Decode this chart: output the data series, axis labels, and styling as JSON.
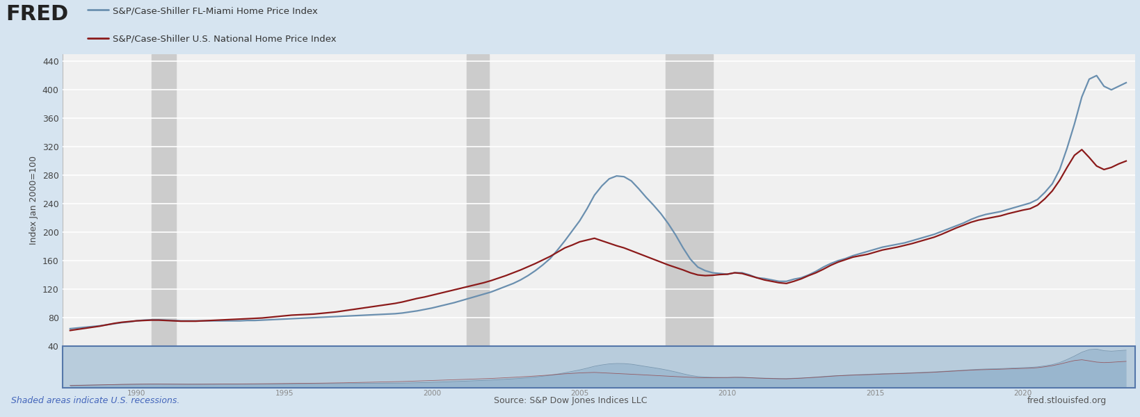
{
  "title_line1": "S&P/Case-Shiller FL-Miami Home Price Index",
  "title_line2": "S&P/Case-Shiller U.S. National Home Price Index",
  "ylabel": "Index Jan 2000=100",
  "source_text": "Source: S&P Dow Jones Indices LLC",
  "fred_url": "fred.stlouisfed.org",
  "recession_note": "Shaded areas indicate U.S. recessions.",
  "background_color": "#d6e4f0",
  "plot_bg_color": "#f0f0f0",
  "miami_color": "#6a8faf",
  "national_color": "#8b1a1a",
  "recession_color": "#cccccc",
  "recession_shades": [
    {
      "start": 1990.5,
      "end": 1991.33
    },
    {
      "start": 2001.17,
      "end": 2001.92
    },
    {
      "start": 2007.92,
      "end": 2009.5
    }
  ],
  "ylim": [
    40,
    450
  ],
  "yticks": [
    40,
    80,
    120,
    160,
    200,
    240,
    280,
    320,
    360,
    400,
    440
  ],
  "xlim_main": [
    1987.5,
    2023.8
  ],
  "xticks_main": [
    1988,
    1990,
    1992,
    1994,
    1996,
    1998,
    2000,
    2002,
    2004,
    2006,
    2008,
    2010,
    2012,
    2014,
    2016,
    2018,
    2020,
    2022
  ],
  "miami_data": [
    [
      1987.75,
      64.5
    ],
    [
      1988.0,
      65.5
    ],
    [
      1988.25,
      66.5
    ],
    [
      1988.5,
      67.5
    ],
    [
      1988.75,
      68.5
    ],
    [
      1989.0,
      70.0
    ],
    [
      1989.25,
      71.5
    ],
    [
      1989.5,
      73.0
    ],
    [
      1989.75,
      74.0
    ],
    [
      1990.0,
      75.5
    ],
    [
      1990.25,
      76.5
    ],
    [
      1990.5,
      77.0
    ],
    [
      1990.75,
      77.0
    ],
    [
      1991.0,
      76.5
    ],
    [
      1991.25,
      76.0
    ],
    [
      1991.5,
      75.5
    ],
    [
      1991.75,
      75.5
    ],
    [
      1992.0,
      75.5
    ],
    [
      1992.25,
      75.5
    ],
    [
      1992.5,
      75.5
    ],
    [
      1992.75,
      75.5
    ],
    [
      1993.0,
      75.5
    ],
    [
      1993.25,
      75.5
    ],
    [
      1993.5,
      75.5
    ],
    [
      1993.75,
      76.0
    ],
    [
      1994.0,
      76.0
    ],
    [
      1994.25,
      76.5
    ],
    [
      1994.5,
      77.0
    ],
    [
      1994.75,
      77.5
    ],
    [
      1995.0,
      78.0
    ],
    [
      1995.25,
      78.5
    ],
    [
      1995.5,
      79.0
    ],
    [
      1995.75,
      79.5
    ],
    [
      1996.0,
      80.0
    ],
    [
      1996.25,
      80.5
    ],
    [
      1996.5,
      81.0
    ],
    [
      1996.75,
      81.5
    ],
    [
      1997.0,
      82.0
    ],
    [
      1997.25,
      82.5
    ],
    [
      1997.5,
      83.0
    ],
    [
      1997.75,
      83.5
    ],
    [
      1998.0,
      84.0
    ],
    [
      1998.25,
      84.5
    ],
    [
      1998.5,
      85.0
    ],
    [
      1998.75,
      85.5
    ],
    [
      1999.0,
      86.5
    ],
    [
      1999.25,
      88.0
    ],
    [
      1999.5,
      89.5
    ],
    [
      1999.75,
      91.5
    ],
    [
      2000.0,
      93.5
    ],
    [
      2000.25,
      96.0
    ],
    [
      2000.5,
      98.5
    ],
    [
      2000.75,
      101.0
    ],
    [
      2001.0,
      104.0
    ],
    [
      2001.25,
      107.0
    ],
    [
      2001.5,
      110.0
    ],
    [
      2001.75,
      113.0
    ],
    [
      2002.0,
      116.0
    ],
    [
      2002.25,
      120.0
    ],
    [
      2002.5,
      124.0
    ],
    [
      2002.75,
      128.0
    ],
    [
      2003.0,
      133.0
    ],
    [
      2003.25,
      139.0
    ],
    [
      2003.5,
      146.0
    ],
    [
      2003.75,
      154.0
    ],
    [
      2004.0,
      163.0
    ],
    [
      2004.25,
      175.0
    ],
    [
      2004.5,
      188.0
    ],
    [
      2004.75,
      202.0
    ],
    [
      2005.0,
      216.0
    ],
    [
      2005.25,
      233.0
    ],
    [
      2005.5,
      252.0
    ],
    [
      2005.75,
      265.0
    ],
    [
      2006.0,
      275.0
    ],
    [
      2006.25,
      279.0
    ],
    [
      2006.5,
      278.0
    ],
    [
      2006.75,
      272.0
    ],
    [
      2007.0,
      261.0
    ],
    [
      2007.25,
      249.0
    ],
    [
      2007.5,
      238.0
    ],
    [
      2007.75,
      226.0
    ],
    [
      2008.0,
      212.0
    ],
    [
      2008.25,
      196.0
    ],
    [
      2008.5,
      178.0
    ],
    [
      2008.75,
      162.0
    ],
    [
      2009.0,
      151.0
    ],
    [
      2009.25,
      146.0
    ],
    [
      2009.5,
      143.0
    ],
    [
      2009.75,
      142.0
    ],
    [
      2010.0,
      141.0
    ],
    [
      2010.25,
      143.0
    ],
    [
      2010.5,
      143.0
    ],
    [
      2010.75,
      140.0
    ],
    [
      2011.0,
      136.0
    ],
    [
      2011.25,
      135.0
    ],
    [
      2011.5,
      133.0
    ],
    [
      2011.75,
      131.0
    ],
    [
      2012.0,
      131.0
    ],
    [
      2012.25,
      134.0
    ],
    [
      2012.5,
      136.0
    ],
    [
      2012.75,
      140.0
    ],
    [
      2013.0,
      145.0
    ],
    [
      2013.25,
      151.0
    ],
    [
      2013.5,
      156.0
    ],
    [
      2013.75,
      160.0
    ],
    [
      2014.0,
      163.0
    ],
    [
      2014.25,
      167.0
    ],
    [
      2014.5,
      170.0
    ],
    [
      2014.75,
      173.0
    ],
    [
      2015.0,
      176.0
    ],
    [
      2015.25,
      179.0
    ],
    [
      2015.5,
      181.0
    ],
    [
      2015.75,
      183.0
    ],
    [
      2016.0,
      185.0
    ],
    [
      2016.25,
      188.0
    ],
    [
      2016.5,
      191.0
    ],
    [
      2016.75,
      194.0
    ],
    [
      2017.0,
      197.0
    ],
    [
      2017.25,
      201.0
    ],
    [
      2017.5,
      205.0
    ],
    [
      2017.75,
      209.0
    ],
    [
      2018.0,
      213.0
    ],
    [
      2018.25,
      218.0
    ],
    [
      2018.5,
      222.0
    ],
    [
      2018.75,
      225.0
    ],
    [
      2019.0,
      227.0
    ],
    [
      2019.25,
      229.0
    ],
    [
      2019.5,
      232.0
    ],
    [
      2019.75,
      235.0
    ],
    [
      2020.0,
      238.0
    ],
    [
      2020.25,
      241.0
    ],
    [
      2020.5,
      246.0
    ],
    [
      2020.75,
      256.0
    ],
    [
      2021.0,
      268.0
    ],
    [
      2021.25,
      288.0
    ],
    [
      2021.5,
      318.0
    ],
    [
      2021.75,
      352.0
    ],
    [
      2022.0,
      390.0
    ],
    [
      2022.25,
      415.0
    ],
    [
      2022.5,
      420.0
    ],
    [
      2022.75,
      405.0
    ],
    [
      2023.0,
      400.0
    ],
    [
      2023.25,
      405.0
    ],
    [
      2023.5,
      410.0
    ]
  ],
  "national_data": [
    [
      1987.75,
      62.0
    ],
    [
      1988.0,
      63.5
    ],
    [
      1988.25,
      65.0
    ],
    [
      1988.5,
      66.5
    ],
    [
      1988.75,
      68.0
    ],
    [
      1989.0,
      70.0
    ],
    [
      1989.25,
      72.0
    ],
    [
      1989.5,
      73.5
    ],
    [
      1989.75,
      74.5
    ],
    [
      1990.0,
      75.5
    ],
    [
      1990.25,
      76.0
    ],
    [
      1990.5,
      76.5
    ],
    [
      1990.75,
      76.5
    ],
    [
      1991.0,
      76.0
    ],
    [
      1991.25,
      75.5
    ],
    [
      1991.5,
      75.0
    ],
    [
      1991.75,
      75.0
    ],
    [
      1992.0,
      75.0
    ],
    [
      1992.25,
      75.5
    ],
    [
      1992.5,
      76.0
    ],
    [
      1992.75,
      76.5
    ],
    [
      1993.0,
      77.0
    ],
    [
      1993.25,
      77.5
    ],
    [
      1993.5,
      78.0
    ],
    [
      1993.75,
      78.5
    ],
    [
      1994.0,
      79.0
    ],
    [
      1994.25,
      79.5
    ],
    [
      1994.5,
      80.5
    ],
    [
      1994.75,
      81.5
    ],
    [
      1995.0,
      82.5
    ],
    [
      1995.25,
      83.5
    ],
    [
      1995.5,
      84.0
    ],
    [
      1995.75,
      84.5
    ],
    [
      1996.0,
      85.0
    ],
    [
      1996.25,
      86.0
    ],
    [
      1996.5,
      87.0
    ],
    [
      1996.75,
      88.0
    ],
    [
      1997.0,
      89.5
    ],
    [
      1997.25,
      91.0
    ],
    [
      1997.5,
      92.5
    ],
    [
      1997.75,
      94.0
    ],
    [
      1998.0,
      95.5
    ],
    [
      1998.25,
      97.0
    ],
    [
      1998.5,
      98.5
    ],
    [
      1998.75,
      100.0
    ],
    [
      1999.0,
      102.0
    ],
    [
      1999.25,
      104.5
    ],
    [
      1999.5,
      107.0
    ],
    [
      1999.75,
      109.0
    ],
    [
      2000.0,
      111.5
    ],
    [
      2000.25,
      114.0
    ],
    [
      2000.5,
      116.5
    ],
    [
      2000.75,
      119.0
    ],
    [
      2001.0,
      121.5
    ],
    [
      2001.25,
      124.0
    ],
    [
      2001.5,
      126.5
    ],
    [
      2001.75,
      129.0
    ],
    [
      2002.0,
      132.0
    ],
    [
      2002.25,
      135.5
    ],
    [
      2002.5,
      139.0
    ],
    [
      2002.75,
      143.0
    ],
    [
      2003.0,
      147.0
    ],
    [
      2003.25,
      151.5
    ],
    [
      2003.5,
      156.0
    ],
    [
      2003.75,
      161.0
    ],
    [
      2004.0,
      166.0
    ],
    [
      2004.25,
      172.0
    ],
    [
      2004.5,
      178.0
    ],
    [
      2004.75,
      182.0
    ],
    [
      2005.0,
      186.5
    ],
    [
      2005.25,
      189.0
    ],
    [
      2005.5,
      191.5
    ],
    [
      2005.75,
      188.0
    ],
    [
      2006.0,
      184.5
    ],
    [
      2006.25,
      181.0
    ],
    [
      2006.5,
      178.0
    ],
    [
      2006.75,
      174.0
    ],
    [
      2007.0,
      170.0
    ],
    [
      2007.25,
      166.0
    ],
    [
      2007.5,
      162.0
    ],
    [
      2007.75,
      158.0
    ],
    [
      2008.0,
      154.0
    ],
    [
      2008.25,
      150.5
    ],
    [
      2008.5,
      147.0
    ],
    [
      2008.75,
      143.0
    ],
    [
      2009.0,
      140.0
    ],
    [
      2009.25,
      139.0
    ],
    [
      2009.5,
      139.5
    ],
    [
      2009.75,
      140.5
    ],
    [
      2010.0,
      141.0
    ],
    [
      2010.25,
      143.0
    ],
    [
      2010.5,
      142.0
    ],
    [
      2010.75,
      139.0
    ],
    [
      2011.0,
      136.0
    ],
    [
      2011.25,
      133.0
    ],
    [
      2011.5,
      131.0
    ],
    [
      2011.75,
      129.0
    ],
    [
      2012.0,
      128.0
    ],
    [
      2012.25,
      131.0
    ],
    [
      2012.5,
      134.5
    ],
    [
      2012.75,
      139.0
    ],
    [
      2013.0,
      143.0
    ],
    [
      2013.25,
      148.0
    ],
    [
      2013.5,
      153.5
    ],
    [
      2013.75,
      158.0
    ],
    [
      2014.0,
      161.5
    ],
    [
      2014.25,
      165.0
    ],
    [
      2014.5,
      167.0
    ],
    [
      2014.75,
      169.0
    ],
    [
      2015.0,
      172.0
    ],
    [
      2015.25,
      175.0
    ],
    [
      2015.5,
      177.0
    ],
    [
      2015.75,
      179.0
    ],
    [
      2016.0,
      181.5
    ],
    [
      2016.25,
      184.0
    ],
    [
      2016.5,
      187.0
    ],
    [
      2016.75,
      190.0
    ],
    [
      2017.0,
      193.0
    ],
    [
      2017.25,
      197.0
    ],
    [
      2017.5,
      201.5
    ],
    [
      2017.75,
      206.0
    ],
    [
      2018.0,
      210.0
    ],
    [
      2018.25,
      214.0
    ],
    [
      2018.5,
      217.0
    ],
    [
      2018.75,
      219.0
    ],
    [
      2019.0,
      221.0
    ],
    [
      2019.25,
      223.0
    ],
    [
      2019.5,
      226.0
    ],
    [
      2019.75,
      228.5
    ],
    [
      2020.0,
      231.0
    ],
    [
      2020.25,
      233.0
    ],
    [
      2020.5,
      238.0
    ],
    [
      2020.75,
      247.0
    ],
    [
      2021.0,
      258.0
    ],
    [
      2021.25,
      273.0
    ],
    [
      2021.5,
      291.0
    ],
    [
      2021.75,
      308.0
    ],
    [
      2022.0,
      316.0
    ],
    [
      2022.25,
      305.0
    ],
    [
      2022.5,
      293.0
    ],
    [
      2022.75,
      288.0
    ],
    [
      2023.0,
      291.0
    ],
    [
      2023.25,
      296.0
    ],
    [
      2023.5,
      300.0
    ]
  ]
}
